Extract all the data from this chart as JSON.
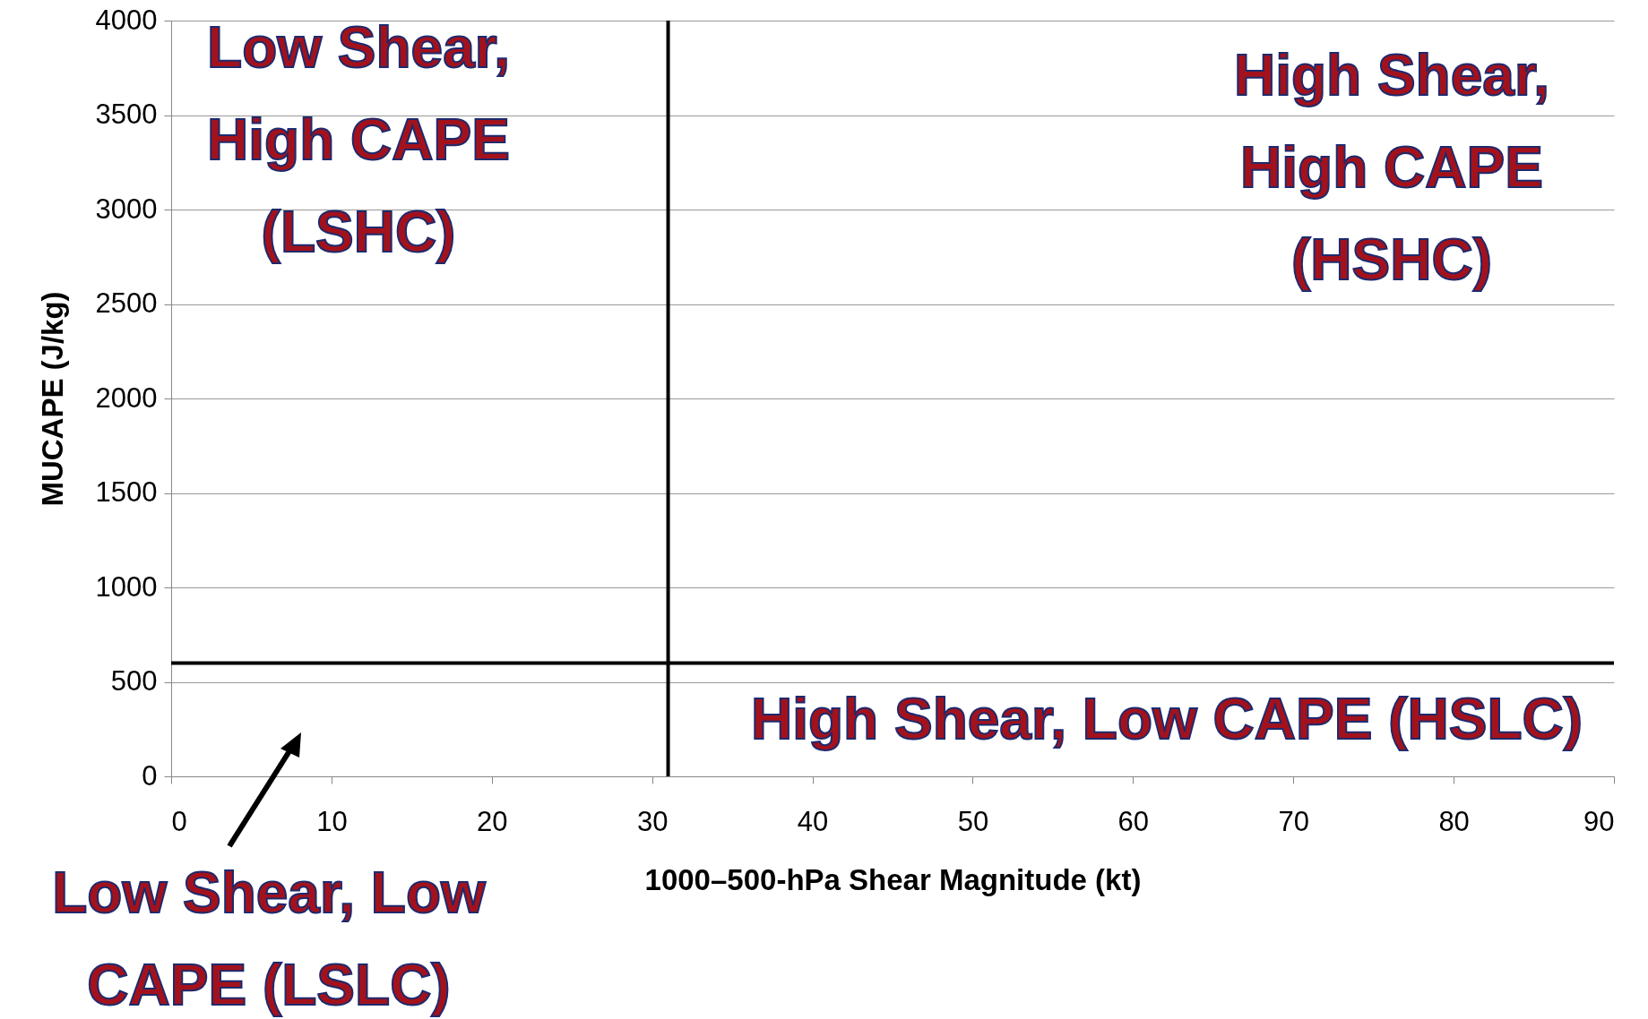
{
  "chart_data": {
    "type": "scatter",
    "xlabel": "1000–500-hPa Shear Magnitude (kt)",
    "ylabel": "MUCAPE (J/kg)",
    "xlim": [
      0,
      90
    ],
    "xticks": [
      0,
      10,
      20,
      30,
      40,
      50,
      60,
      70,
      80,
      90
    ],
    "ylim": [
      0,
      4000
    ],
    "yticks": [
      0,
      500,
      1000,
      1500,
      2000,
      2500,
      3000,
      3500,
      4000
    ],
    "grid": "y",
    "ref_lines": [
      {
        "axis": "x",
        "value": 31,
        "color": "#000000"
      },
      {
        "axis": "y",
        "value": 600,
        "color": "#000000"
      }
    ],
    "annotations": [
      "Low Shear, High CAPE (LSHC)",
      "High Shear, High CAPE (HSHC)",
      "High Shear, Low CAPE (HSLC)",
      "Low Shear, Low CAPE (LSLC)"
    ]
  }
}
